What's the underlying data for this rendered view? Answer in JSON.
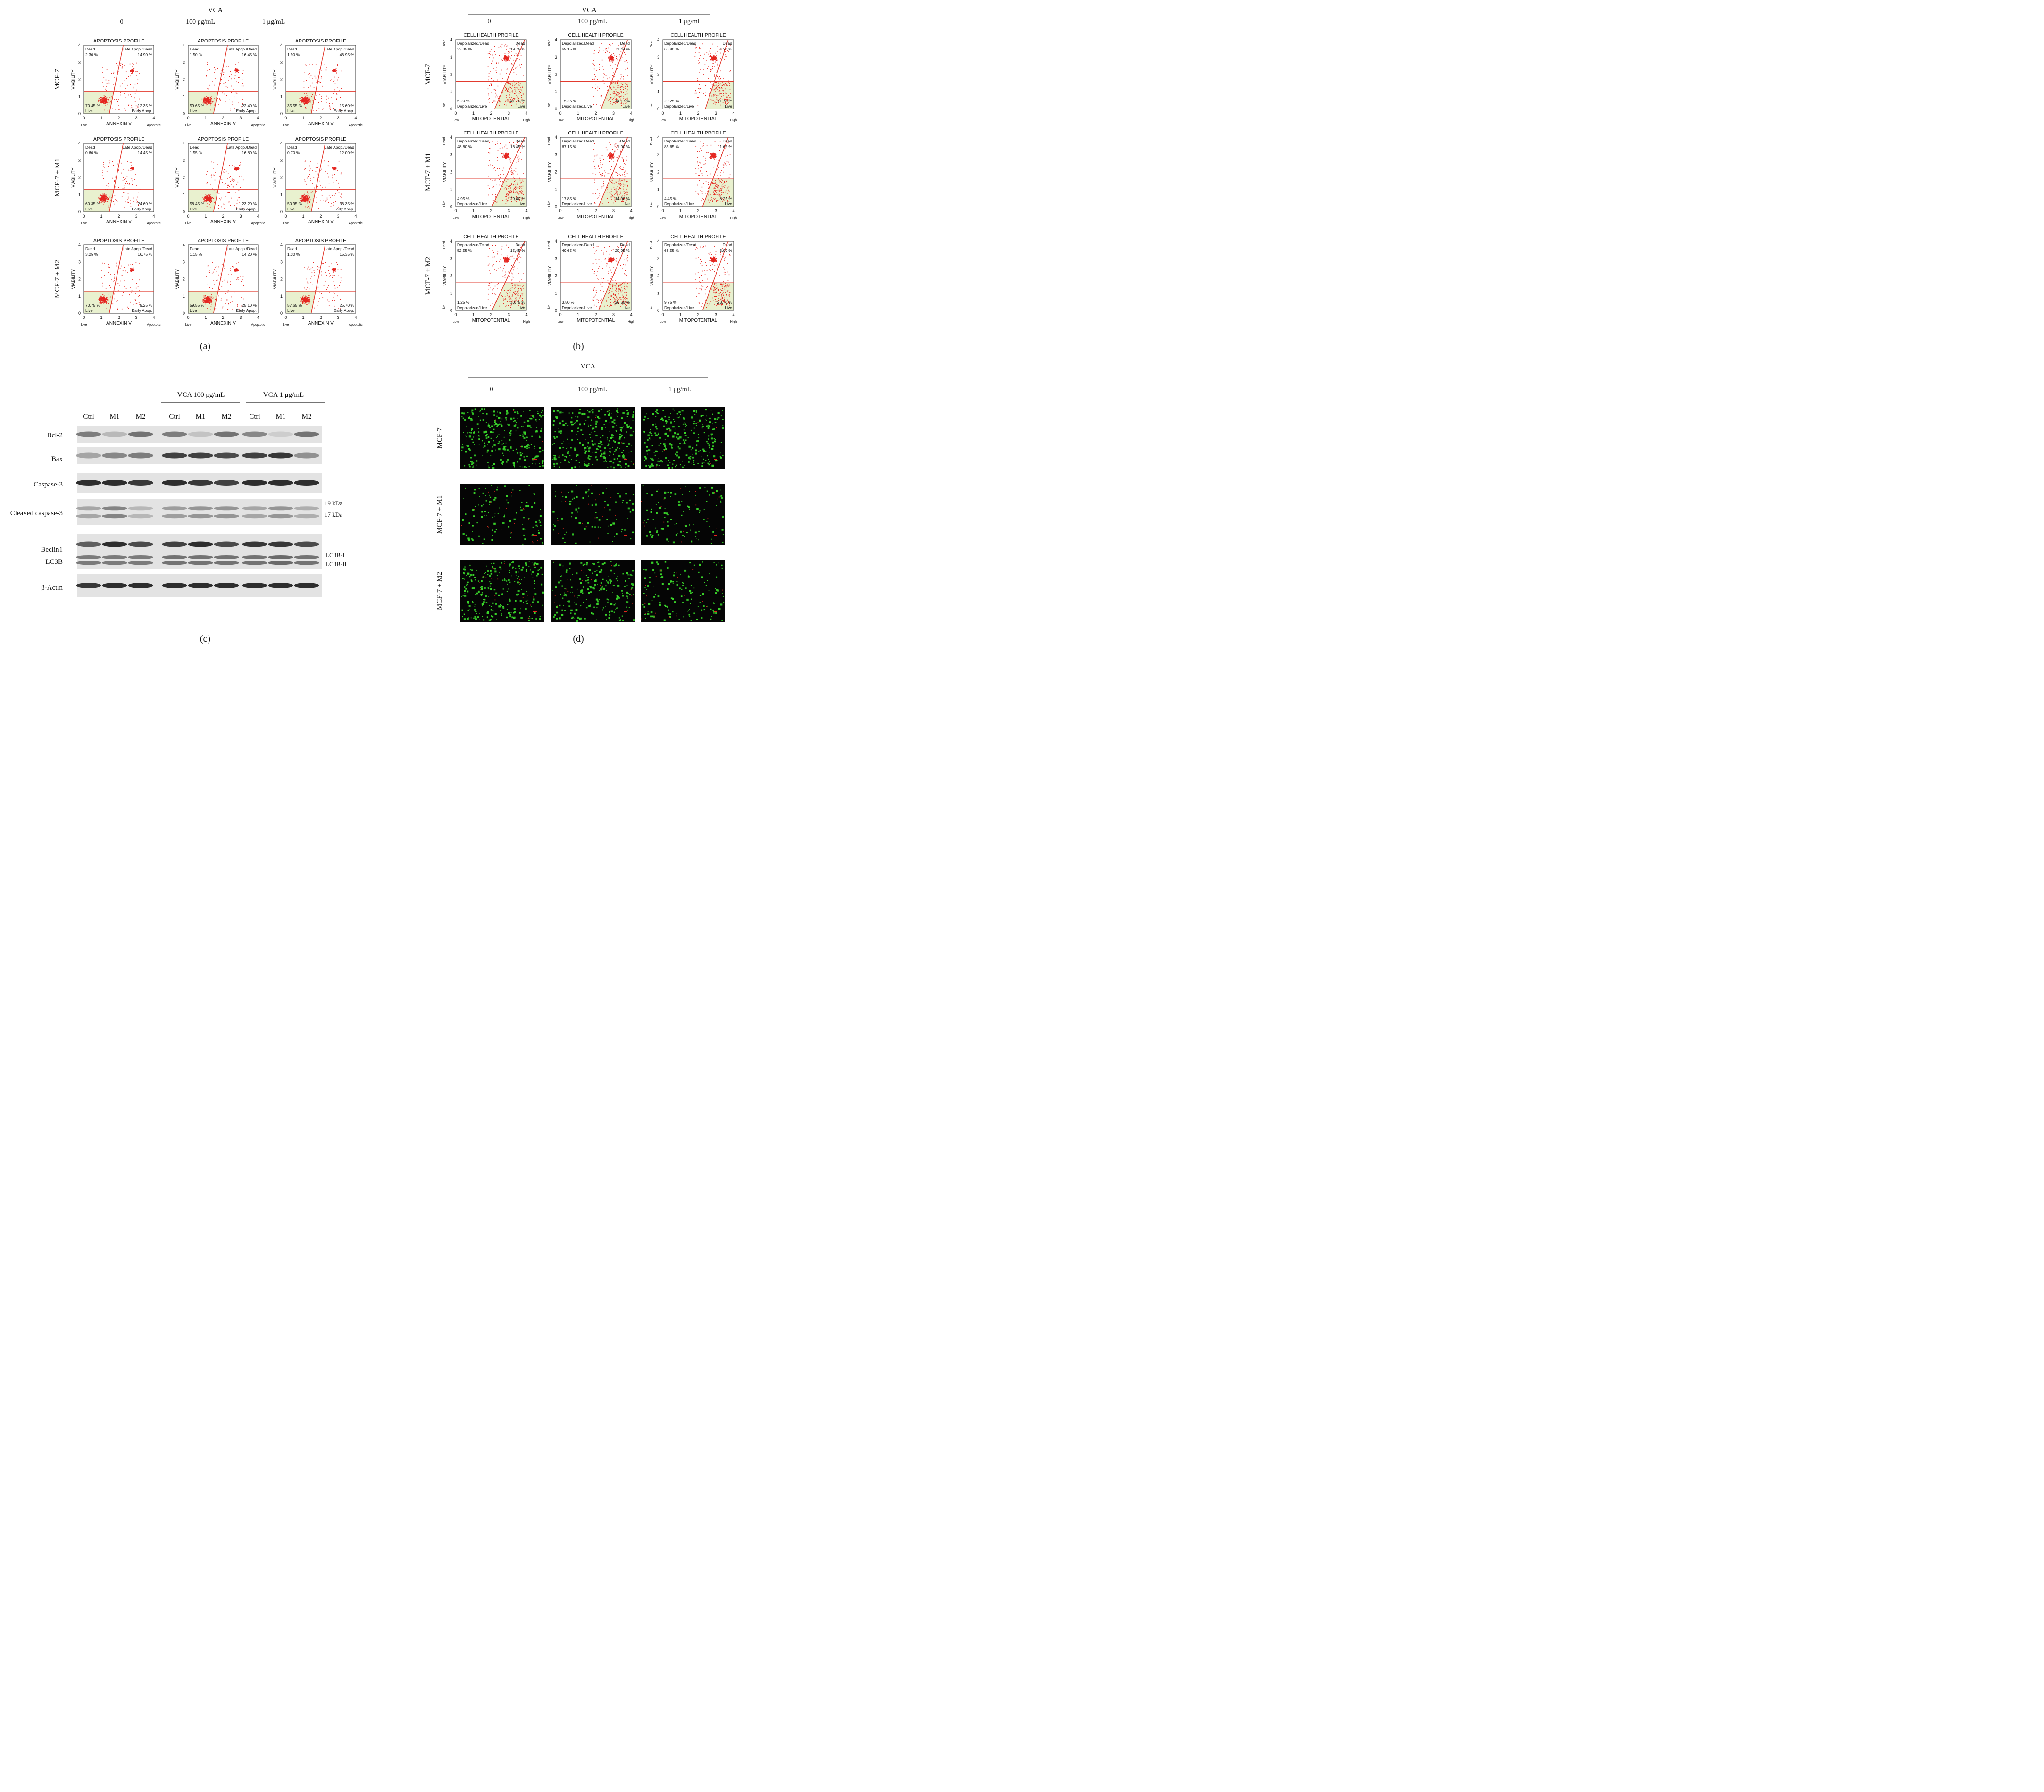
{
  "panel_labels": {
    "a": "(a)",
    "b": "(b)",
    "c": "(c)",
    "d": "(d)"
  },
  "treatment": {
    "title": "VCA",
    "doses": [
      "0",
      "100 pg/mL",
      "1 μg/mL"
    ],
    "rows": [
      "MCF-7",
      "MCF-7 + M1",
      "MCF-7 + M2"
    ]
  },
  "apoptosis": {
    "plot_title": "APOPTOSIS PROFILE",
    "xlabel": "ANNEXIN V",
    "ylabel": "VIABILITY",
    "x_end_left": "Live",
    "x_end_right": "Apoptotic",
    "quadrants": [
      "Dead",
      "Late Apop./Dead",
      "Live",
      "Early Apop."
    ],
    "ticks": [
      "0",
      "1",
      "2",
      "3",
      "4"
    ]
  },
  "cell_health": {
    "plot_title": "CELL HEALTH PROFILE",
    "xlabel": "MITOPOTENTIAL",
    "ylabel": "VIABILITY",
    "x_end_left": "Low",
    "x_end_right": "High",
    "y_end_bottom": "Live",
    "y_end_top": "Dead",
    "quadrants": [
      "Depolarized/Dead",
      "Dead",
      "Depolarized/Live",
      "Live"
    ],
    "ticks": [
      "0",
      "1",
      "2",
      "3",
      "4"
    ]
  },
  "chart_data": [
    {
      "type": "scatter",
      "panel": "a",
      "title": "APOPTOSIS PROFILE",
      "xlabel": "ANNEXIN V",
      "ylabel": "VIABILITY",
      "xlim": [
        0,
        4
      ],
      "ylim": [
        0,
        4
      ],
      "quadrant_order": [
        "Dead",
        "Late Apop./Dead",
        "Live",
        "Early Apop."
      ],
      "grid": [
        [
          [
            "2.30 %",
            "14.90 %",
            "70.45 %",
            "12.35 %"
          ],
          [
            "1.50 %",
            "16.45 %",
            "59.65 %",
            "22.40 %"
          ],
          [
            "1.90 %",
            "46.95 %",
            "35.55 %",
            "15.60 %"
          ]
        ],
        [
          [
            "0.60 %",
            "14.45 %",
            "60.35 %",
            "24.60 %"
          ],
          [
            "1.55 %",
            "16.80 %",
            "58.45 %",
            "23.20 %"
          ],
          [
            "0.70 %",
            "12.00 %",
            "50.95 %",
            "36.35 %"
          ]
        ],
        [
          [
            "3.25 %",
            "16.75 %",
            "70.75 %",
            "9.25 %"
          ],
          [
            "1.15 %",
            "14.20 %",
            "59.55 %",
            "25.10 %"
          ],
          [
            "1.30 %",
            "15.35 %",
            "57.65 %",
            "25.70 %"
          ]
        ]
      ]
    },
    {
      "type": "scatter",
      "panel": "b",
      "title": "CELL HEALTH PROFILE",
      "xlabel": "MITOPOTENTIAL",
      "ylabel": "VIABILITY",
      "xlim": [
        0,
        4
      ],
      "ylim": [
        0,
        4
      ],
      "quadrant_order": [
        "Depolarized/Dead",
        "Dead",
        "Depolarized/Live",
        "Live"
      ],
      "grid": [
        [
          [
            "33.35 %",
            "19.75 %",
            "5.20 %",
            "41.70 %"
          ],
          [
            "69.15 %",
            "1.44 %",
            "15.25 %",
            "14.17 %"
          ],
          [
            "66.80 %",
            "1.20 %",
            "20.25 %",
            "11.75 %"
          ]
        ],
        [
          [
            "48.80 %",
            "16.45 %",
            "4.95 %",
            "29.80 %"
          ],
          [
            "67.15 %",
            "1.00 %",
            "17.85 %",
            "14.00 %"
          ],
          [
            "85.65 %",
            "1.65 %",
            "4.45 %",
            "8.25 %"
          ]
        ],
        [
          [
            "52.55 %",
            "15.45 %",
            "1.25 %",
            "30.75 %"
          ],
          [
            "49.65 %",
            "20.05 %",
            "3.80 %",
            "26.50 %"
          ],
          [
            "63.55 %",
            "3.00 %",
            "9.75 %",
            "23.70 %"
          ]
        ]
      ]
    }
  ],
  "western": {
    "groups": [
      "VCA 100 pg/mL",
      "VCA 1 μg/mL"
    ],
    "lanes": [
      "Ctrl",
      "M1",
      "M2",
      "Ctrl",
      "M1",
      "M2",
      "Ctrl",
      "M1",
      "M2"
    ],
    "proteins": [
      "Bcl-2",
      "Bax",
      "Caspase-3",
      "Cleaved caspase-3",
      "Beclin1",
      "LC3B",
      "β-Actin"
    ],
    "band_labels": [
      "19 kDa",
      "17 kDa",
      "LC3B-I",
      "LC3B-II"
    ]
  },
  "colors": {
    "scatter": "#e52620",
    "gate": "#e23a2e",
    "quadrant_fill": "#e9f1cf",
    "cells": "#3ad22a"
  }
}
